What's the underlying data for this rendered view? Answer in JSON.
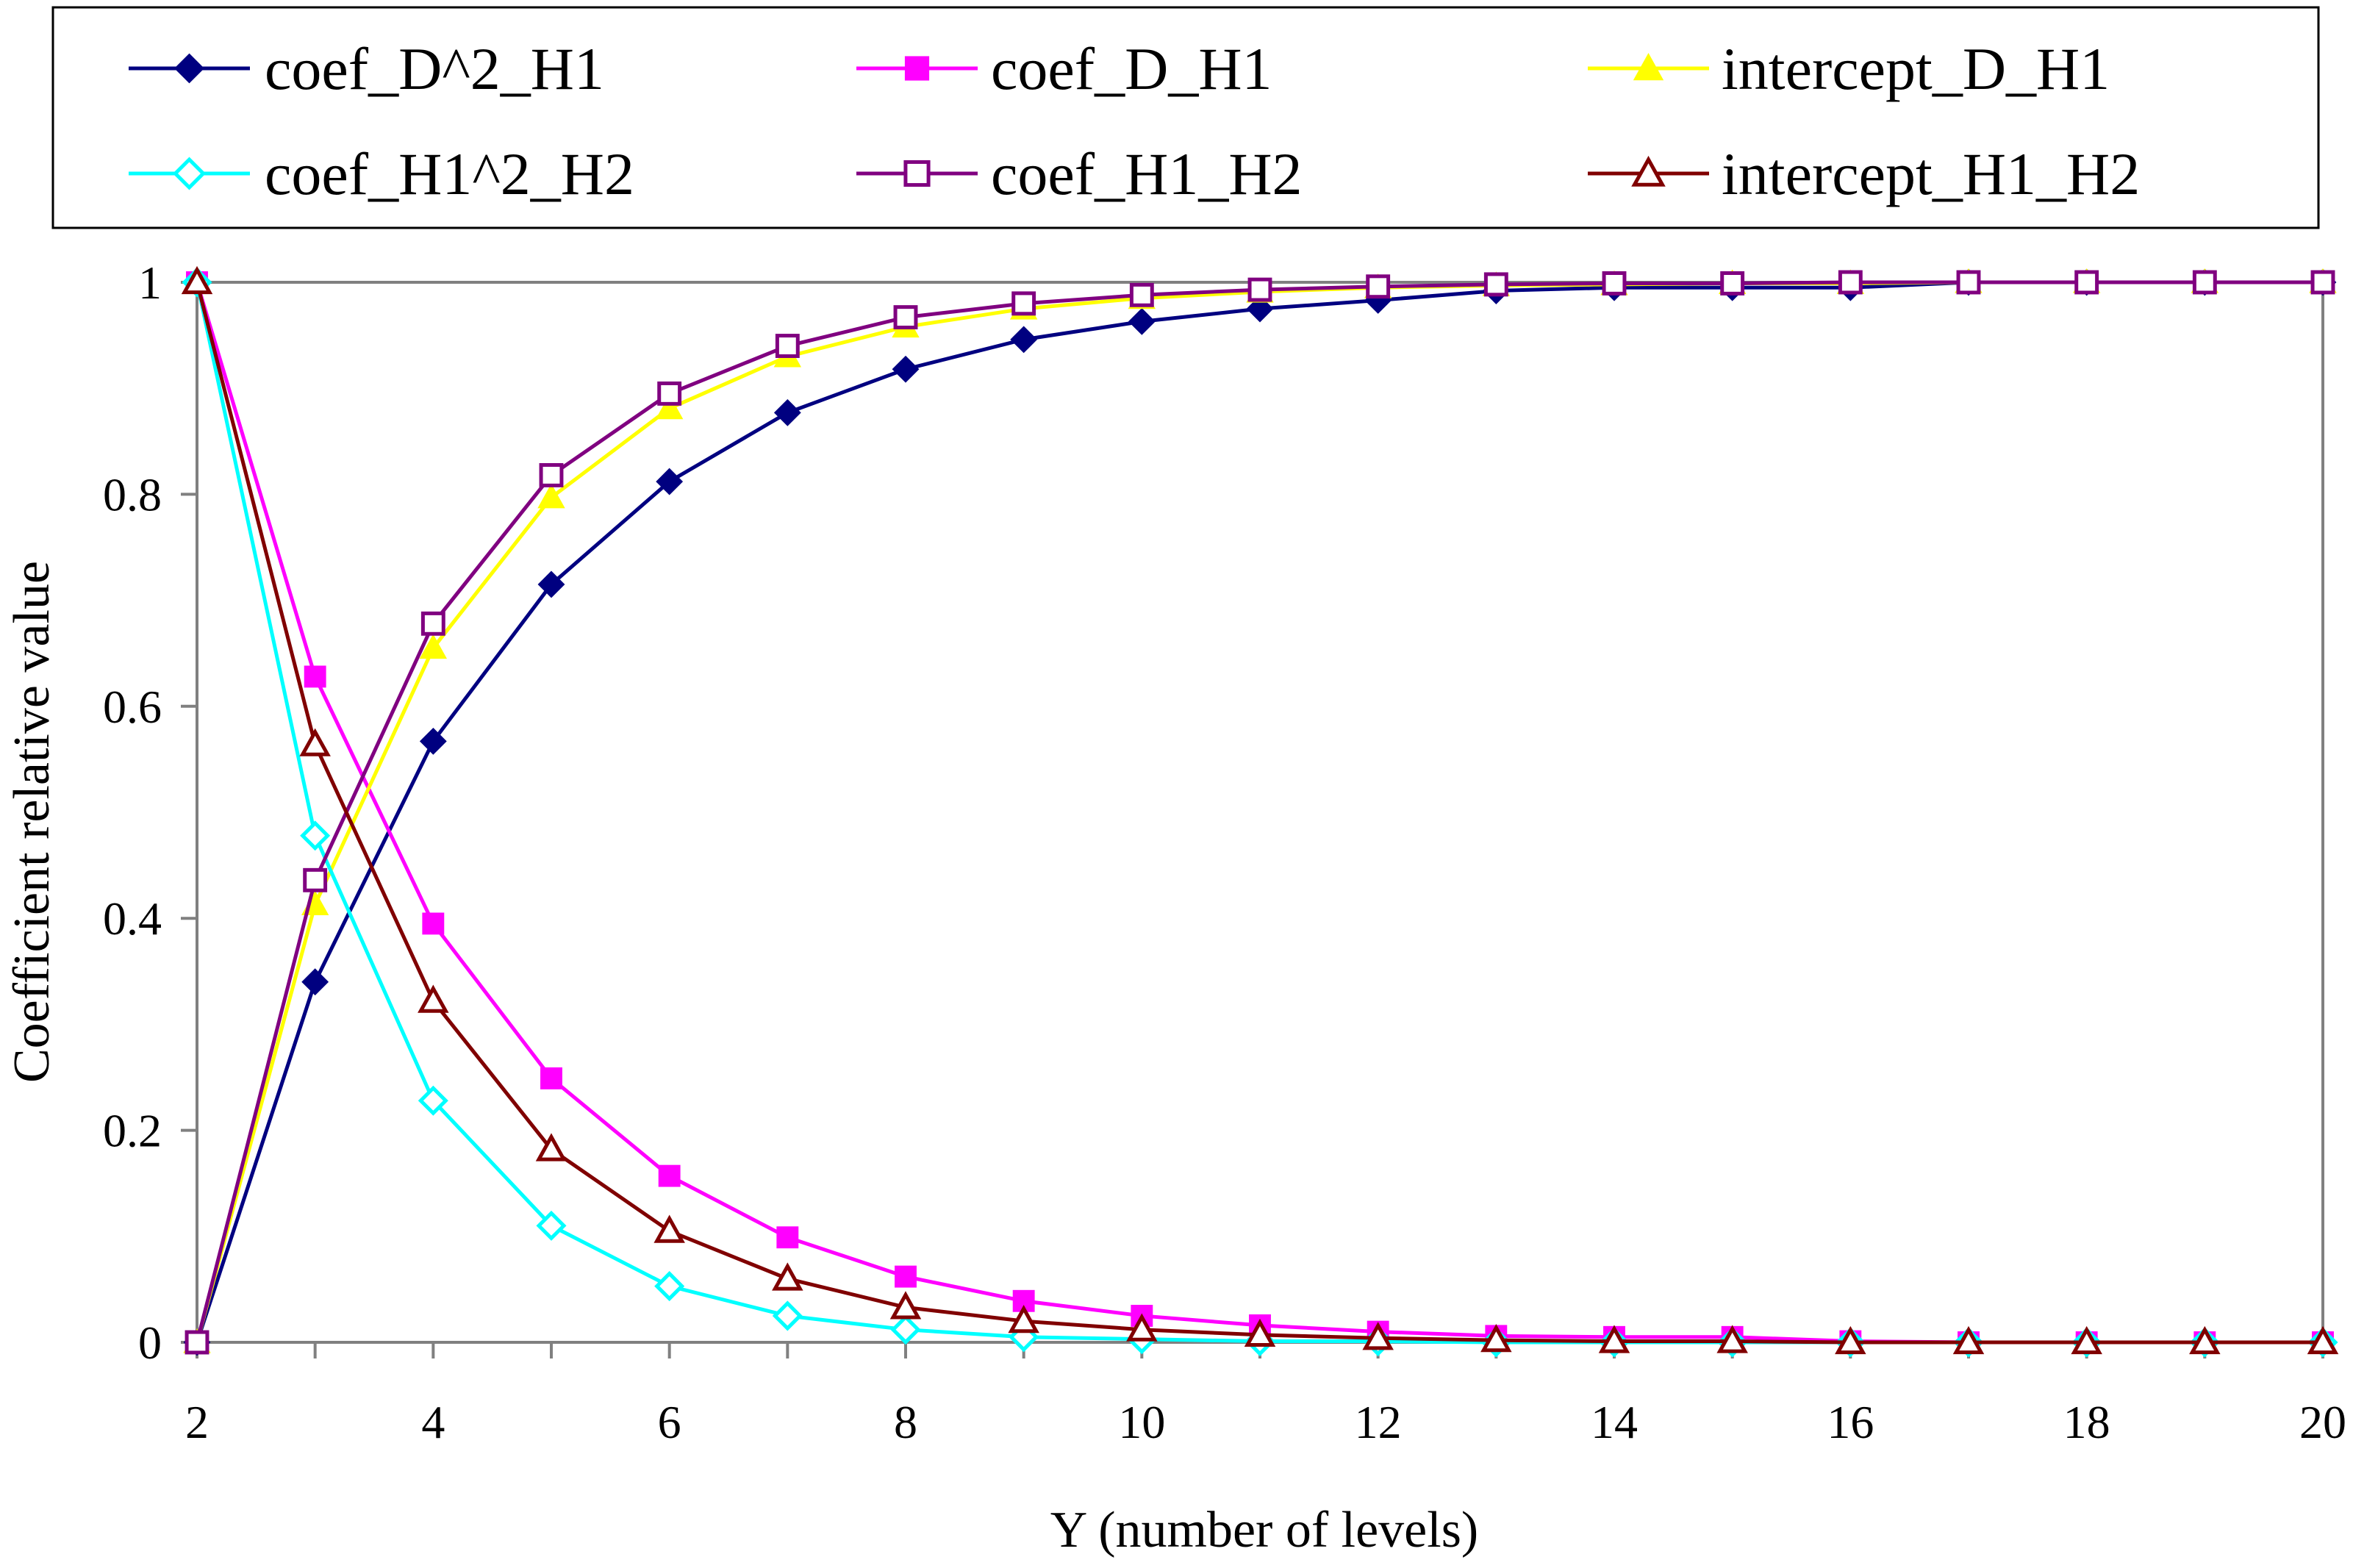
{
  "chart_data": {
    "type": "line",
    "title": "",
    "xlabel": "Y (number of levels)",
    "ylabel": "Coefficient relative value",
    "xlim": [
      2,
      20
    ],
    "ylim": [
      0,
      1
    ],
    "x": [
      2,
      3,
      4,
      5,
      6,
      7,
      8,
      9,
      10,
      11,
      12,
      13,
      14,
      15,
      16,
      17,
      18,
      19,
      20
    ],
    "xticks": [
      "2",
      "4",
      "6",
      "8",
      "10",
      "12",
      "14",
      "16",
      "18",
      "20"
    ],
    "yticks": [
      "0",
      "0.2",
      "0.4",
      "0.6",
      "0.8",
      "1"
    ],
    "grid": false,
    "legend_position": "top",
    "series": [
      {
        "name": "coef_D^2_H1",
        "color": "#000080",
        "marker": "diamond-filled",
        "values": [
          0,
          0.34,
          0.567,
          0.715,
          0.812,
          0.877,
          0.918,
          0.946,
          0.963,
          0.975,
          0.983,
          0.992,
          0.995,
          0.995,
          0.995,
          1,
          1,
          1,
          1
        ]
      },
      {
        "name": "coef_D_H1",
        "color": "#ff00ff",
        "marker": "square-filled",
        "values": [
          1,
          0.628,
          0.395,
          0.249,
          0.157,
          0.099,
          0.062,
          0.039,
          0.025,
          0.016,
          0.01,
          0.006,
          0.005,
          0.005,
          0.001,
          0,
          0,
          0,
          0
        ]
      },
      {
        "name": "intercept_D_H1",
        "color": "#ffff00",
        "marker": "triangle-filled",
        "values": [
          0,
          0.413,
          0.655,
          0.797,
          0.881,
          0.93,
          0.958,
          0.975,
          0.985,
          0.991,
          0.995,
          0.997,
          0.998,
          0.999,
          0.999,
          1,
          1,
          1,
          1
        ]
      },
      {
        "name": "coef_H1^2_H2",
        "color": "#00ffff",
        "marker": "diamond-open",
        "values": [
          1,
          0.478,
          0.228,
          0.11,
          0.053,
          0.025,
          0.012,
          0.005,
          0.003,
          0.001,
          0.001,
          0,
          0,
          0,
          0,
          0,
          0,
          0,
          0
        ]
      },
      {
        "name": "coef_H1_H2",
        "color": "#800080",
        "marker": "square-open",
        "values": [
          0,
          0.436,
          0.678,
          0.818,
          0.895,
          0.94,
          0.967,
          0.98,
          0.988,
          0.993,
          0.996,
          0.998,
          0.999,
          0.999,
          1,
          1,
          1,
          1,
          1
        ]
      },
      {
        "name": "intercept_H1_H2",
        "color": "#800000",
        "marker": "triangle-open",
        "values": [
          1,
          0.564,
          0.322,
          0.182,
          0.105,
          0.06,
          0.033,
          0.02,
          0.012,
          0.007,
          0.004,
          0.002,
          0.001,
          0.001,
          0,
          0,
          0,
          0,
          0
        ]
      }
    ]
  }
}
